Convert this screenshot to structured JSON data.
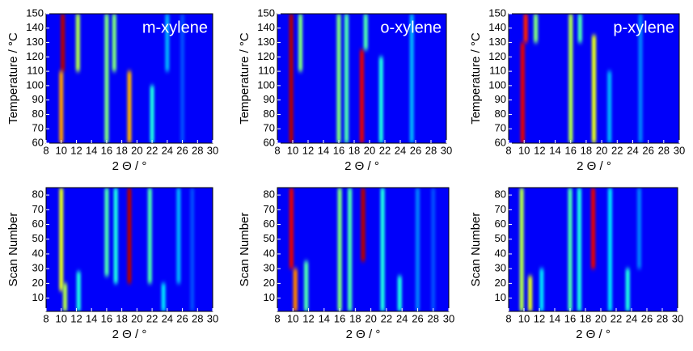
{
  "chart_data": [
    {
      "type": "heatmap",
      "title": "m-xylene",
      "xlabel": "2 Θ / °",
      "ylabel": "Temperature / °C",
      "xlim": [
        8,
        30
      ],
      "xticks": [
        8,
        10,
        12,
        14,
        16,
        18,
        20,
        22,
        24,
        26,
        28,
        30
      ],
      "ylim": [
        60,
        150
      ],
      "yticks": [
        60,
        70,
        80,
        90,
        100,
        110,
        120,
        130,
        140,
        150
      ],
      "streaks": [
        {
          "x": 10.2,
          "from": 110,
          "to": 150,
          "level": 0.95
        },
        {
          "x": 10,
          "from": 60,
          "to": 110,
          "level": 0.72
        },
        {
          "x": 12.2,
          "from": 110,
          "to": 150,
          "level": 0.55
        },
        {
          "x": 16,
          "from": 60,
          "to": 150,
          "level": 0.5
        },
        {
          "x": 17,
          "from": 110,
          "to": 150,
          "level": 0.5
        },
        {
          "x": 19,
          "from": 60,
          "to": 110,
          "level": 0.7
        },
        {
          "x": 22,
          "from": 60,
          "to": 100,
          "level": 0.4
        },
        {
          "x": 24,
          "from": 110,
          "to": 150,
          "level": 0.3
        },
        {
          "x": 26,
          "from": 60,
          "to": 150,
          "level": 0.2
        }
      ]
    },
    {
      "type": "heatmap",
      "title": "o-xylene",
      "xlabel": "2 Θ / °",
      "ylabel": "Temperature / °C",
      "xlim": [
        8,
        30
      ],
      "xticks": [
        8,
        10,
        12,
        14,
        16,
        18,
        20,
        22,
        24,
        26,
        28,
        30
      ],
      "ylim": [
        60,
        150
      ],
      "yticks": [
        60,
        70,
        80,
        90,
        100,
        110,
        120,
        130,
        140,
        150
      ],
      "streaks": [
        {
          "x": 9.8,
          "from": 60,
          "to": 150,
          "level": 0.95
        },
        {
          "x": 11,
          "from": 110,
          "to": 150,
          "level": 0.5
        },
        {
          "x": 16,
          "from": 60,
          "to": 150,
          "level": 0.5
        },
        {
          "x": 17,
          "from": 60,
          "to": 150,
          "level": 0.45
        },
        {
          "x": 19,
          "from": 60,
          "to": 125,
          "level": 0.9
        },
        {
          "x": 19.5,
          "from": 125,
          "to": 150,
          "level": 0.45
        },
        {
          "x": 21.5,
          "from": 60,
          "to": 120,
          "level": 0.4
        },
        {
          "x": 25.5,
          "from": 60,
          "to": 150,
          "level": 0.3
        }
      ]
    },
    {
      "type": "heatmap",
      "title": "p-xylene",
      "xlabel": "2 Θ / °",
      "ylabel": "Temperature / °C",
      "xlim": [
        8,
        30
      ],
      "xticks": [
        8,
        10,
        12,
        14,
        16,
        18,
        20,
        22,
        24,
        26,
        28,
        30
      ],
      "ylim": [
        60,
        150
      ],
      "yticks": [
        60,
        70,
        80,
        90,
        100,
        110,
        120,
        130,
        140,
        150
      ],
      "streaks": [
        {
          "x": 9.8,
          "from": 60,
          "to": 130,
          "level": 0.9
        },
        {
          "x": 10.2,
          "from": 130,
          "to": 150,
          "level": 0.85
        },
        {
          "x": 11.5,
          "from": 130,
          "to": 150,
          "level": 0.5
        },
        {
          "x": 16,
          "from": 60,
          "to": 150,
          "level": 0.55
        },
        {
          "x": 17.2,
          "from": 130,
          "to": 150,
          "level": 0.45
        },
        {
          "x": 19,
          "from": 60,
          "to": 135,
          "level": 0.6
        },
        {
          "x": 21,
          "from": 60,
          "to": 110,
          "level": 0.3
        },
        {
          "x": 25,
          "from": 60,
          "to": 150,
          "level": 0.25
        }
      ]
    },
    {
      "type": "heatmap",
      "xlabel": "2 Θ / °",
      "ylabel": "Scan Number",
      "xlim": [
        8,
        30
      ],
      "xticks": [
        8,
        10,
        12,
        14,
        16,
        18,
        20,
        22,
        24,
        26,
        28,
        30
      ],
      "ylim": [
        1,
        85
      ],
      "yticks": [
        10,
        20,
        30,
        40,
        50,
        60,
        70,
        80
      ],
      "streaks": [
        {
          "x": 10,
          "from": 15,
          "to": 85,
          "level": 0.6
        },
        {
          "x": 10.5,
          "from": 1,
          "to": 20,
          "level": 0.55
        },
        {
          "x": 12.3,
          "from": 1,
          "to": 28,
          "level": 0.4
        },
        {
          "x": 16,
          "from": 25,
          "to": 85,
          "level": 0.45
        },
        {
          "x": 17.2,
          "from": 20,
          "to": 85,
          "level": 0.4
        },
        {
          "x": 19,
          "from": 20,
          "to": 85,
          "level": 0.95
        },
        {
          "x": 21.7,
          "from": 20,
          "to": 85,
          "level": 0.45
        },
        {
          "x": 23.5,
          "from": 1,
          "to": 20,
          "level": 0.35
        },
        {
          "x": 25.5,
          "from": 20,
          "to": 85,
          "level": 0.3
        },
        {
          "x": 27.3,
          "from": 1,
          "to": 85,
          "level": 0.2
        }
      ]
    },
    {
      "type": "heatmap",
      "xlabel": "2 Θ / °",
      "ylabel": "Scan Number",
      "xlim": [
        8,
        30
      ],
      "xticks": [
        8,
        10,
        12,
        14,
        16,
        18,
        20,
        22,
        24,
        26,
        28,
        30
      ],
      "ylim": [
        1,
        85
      ],
      "yticks": [
        10,
        20,
        30,
        40,
        50,
        60,
        70,
        80
      ],
      "streaks": [
        {
          "x": 9.8,
          "from": 30,
          "to": 85,
          "level": 0.9
        },
        {
          "x": 10.3,
          "from": 1,
          "to": 30,
          "level": 0.75
        },
        {
          "x": 11.7,
          "from": 1,
          "to": 35,
          "level": 0.45
        },
        {
          "x": 16,
          "from": 1,
          "to": 85,
          "level": 0.5
        },
        {
          "x": 17.3,
          "from": 1,
          "to": 85,
          "level": 0.45
        },
        {
          "x": 19,
          "from": 35,
          "to": 85,
          "level": 0.95
        },
        {
          "x": 21.5,
          "from": 1,
          "to": 85,
          "level": 0.4
        },
        {
          "x": 23.7,
          "from": 1,
          "to": 25,
          "level": 0.4
        },
        {
          "x": 26,
          "from": 1,
          "to": 85,
          "level": 0.25
        },
        {
          "x": 28,
          "from": 1,
          "to": 85,
          "level": 0.2
        }
      ]
    },
    {
      "type": "heatmap",
      "xlabel": "2 Θ / °",
      "ylabel": "Scan Number",
      "xlim": [
        8,
        30
      ],
      "xticks": [
        8,
        10,
        12,
        14,
        16,
        18,
        20,
        22,
        24,
        26,
        28,
        30
      ],
      "ylim": [
        1,
        85
      ],
      "yticks": [
        10,
        20,
        30,
        40,
        50,
        60,
        70,
        80
      ],
      "streaks": [
        {
          "x": 9.7,
          "from": 1,
          "to": 85,
          "level": 0.55
        },
        {
          "x": 10.8,
          "from": 1,
          "to": 25,
          "level": 0.6
        },
        {
          "x": 12.3,
          "from": 1,
          "to": 30,
          "level": 0.35
        },
        {
          "x": 16,
          "from": 1,
          "to": 85,
          "level": 0.45
        },
        {
          "x": 17.2,
          "from": 1,
          "to": 85,
          "level": 0.4
        },
        {
          "x": 19,
          "from": 30,
          "to": 85,
          "level": 0.9
        },
        {
          "x": 21.2,
          "from": 1,
          "to": 85,
          "level": 0.35
        },
        {
          "x": 23.5,
          "from": 1,
          "to": 30,
          "level": 0.4
        },
        {
          "x": 25,
          "from": 30,
          "to": 85,
          "level": 0.25
        }
      ]
    }
  ]
}
